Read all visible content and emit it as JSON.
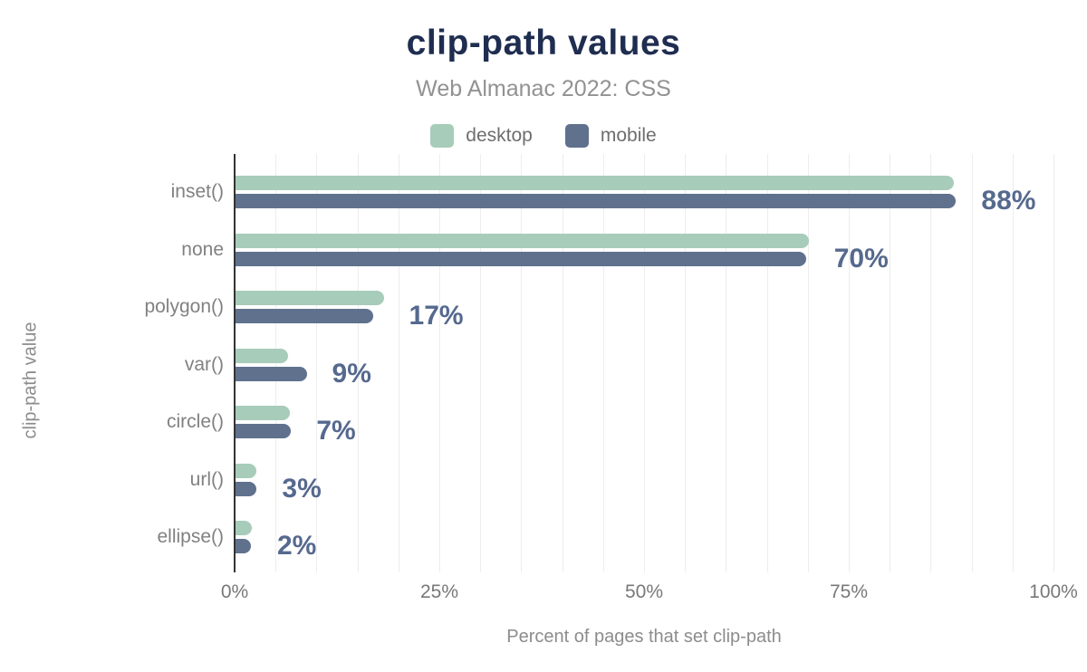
{
  "chart_data": {
    "type": "bar",
    "orientation": "horizontal",
    "title": "clip-path values",
    "subtitle": "Web Almanac 2022: CSS",
    "xlabel": "Percent of pages that set clip-path",
    "ylabel": "clip-path value",
    "categories": [
      "inset()",
      "none",
      "polygon()",
      "var()",
      "circle()",
      "url()",
      "ellipse()"
    ],
    "series": [
      {
        "name": "desktop",
        "color": "#a7ccba",
        "values": [
          87.8,
          70.1,
          18.2,
          6.5,
          6.8,
          2.6,
          2.1
        ]
      },
      {
        "name": "mobile",
        "color": "#5f718d",
        "values": [
          88.1,
          69.8,
          16.9,
          8.8,
          6.9,
          2.7,
          2.0
        ]
      }
    ],
    "value_labels": [
      "88%",
      "70%",
      "17%",
      "9%",
      "7%",
      "3%",
      "2%"
    ],
    "x_ticks": [
      {
        "label": "0%",
        "value": 0
      },
      {
        "label": "25%",
        "value": 25
      },
      {
        "label": "50%",
        "value": 50
      },
      {
        "label": "75%",
        "value": 75
      },
      {
        "label": "100%",
        "value": 100
      }
    ],
    "xlim": [
      0,
      100
    ],
    "gridline_step_percent": 5,
    "grid": true,
    "legend_position": "top",
    "colors": {
      "title": "#1f2d50",
      "subtitle": "#929292",
      "axis_text": "#8c8c8c",
      "tick_text": "#787878",
      "category_text": "#818181",
      "value_label": "#56698e",
      "gridline": "#ededed",
      "axis_line": "#333333",
      "background": "#ffffff"
    }
  }
}
